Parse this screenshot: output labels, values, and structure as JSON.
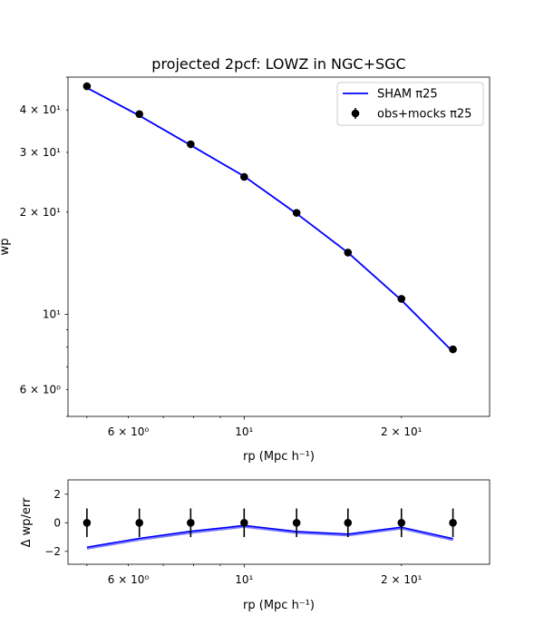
{
  "chart_data": [
    {
      "type": "line",
      "title": "projected 2pcf: LOWZ in NGC+SGC",
      "xlabel": "rp (Mpc h⁻¹)",
      "ylabel": "wp",
      "xscale": "log",
      "yscale": "log",
      "xlim": [
        4.6,
        29.5
      ],
      "ylim": [
        5.0,
        50.0
      ],
      "x_major_ticks": [
        {
          "value": 10,
          "label": "10¹"
        }
      ],
      "x_minor_ticks": [
        {
          "value": 6,
          "label": "6 × 10⁰"
        },
        {
          "value": 20,
          "label": "2 × 10¹"
        }
      ],
      "y_major_ticks": [
        {
          "value": 10,
          "label": "10¹"
        }
      ],
      "y_minor_ticks": [
        {
          "value": 6,
          "label": "6 × 10⁰"
        },
        {
          "value": 20,
          "label": "2 × 10¹"
        },
        {
          "value": 30,
          "label": "3 × 10¹"
        },
        {
          "value": 40,
          "label": "4 × 10¹"
        }
      ],
      "legend_position": "top-right",
      "grid": false,
      "series": [
        {
          "name": "SHAM π25",
          "kind": "line",
          "color": "#0000ff",
          "x": [
            5.0,
            6.3,
            7.9,
            10.0,
            12.6,
            15.8,
            20.0,
            25.1
          ],
          "y": [
            46.5,
            38.5,
            31.5,
            25.5,
            19.8,
            15.2,
            11.0,
            7.75
          ]
        },
        {
          "name": "obs+mocks π25",
          "kind": "errorbar",
          "color": "#000000",
          "x": [
            5.0,
            6.3,
            7.9,
            10.0,
            12.6,
            15.8,
            20.0,
            25.1
          ],
          "y": [
            47.0,
            38.9,
            31.7,
            25.4,
            19.9,
            15.2,
            11.1,
            7.88
          ],
          "yerr": [
            0.4,
            0.3,
            0.25,
            0.2,
            0.15,
            0.12,
            0.09,
            0.07
          ]
        }
      ]
    },
    {
      "type": "line",
      "title": "",
      "xlabel": "rp (Mpc h⁻¹)",
      "ylabel": "Δ wp/err",
      "xscale": "log",
      "yscale": "linear",
      "xlim": [
        4.6,
        29.5
      ],
      "ylim": [
        -2.9,
        3.0
      ],
      "x_major_ticks": [
        {
          "value": 10,
          "label": "10¹"
        }
      ],
      "x_minor_ticks": [
        {
          "value": 6,
          "label": "6 × 10⁰"
        },
        {
          "value": 20,
          "label": "2 × 10¹"
        }
      ],
      "y_ticks": [
        {
          "value": 2,
          "label": "2"
        },
        {
          "value": 0,
          "label": "0"
        },
        {
          "value": -2,
          "label": "−2"
        }
      ],
      "grid": false,
      "series": [
        {
          "kind": "line",
          "color": "#0000ff",
          "x": [
            5.0,
            6.3,
            7.9,
            10.0,
            12.6,
            15.8,
            20.0,
            25.1
          ],
          "y": [
            -1.72,
            -1.1,
            -0.6,
            -0.2,
            -0.62,
            -0.8,
            -0.32,
            -1.12
          ]
        },
        {
          "kind": "line",
          "color": "#7a7aff",
          "x": [
            5.0,
            6.3,
            7.9,
            10.0,
            12.6,
            15.8,
            20.0,
            25.1
          ],
          "y": [
            -1.82,
            -1.2,
            -0.72,
            -0.3,
            -0.72,
            -0.9,
            -0.42,
            -1.22
          ]
        },
        {
          "kind": "errorbar",
          "color": "#000000",
          "x": [
            5.0,
            6.3,
            7.9,
            10.0,
            12.6,
            15.8,
            20.0,
            25.1
          ],
          "y": [
            0,
            0,
            0,
            0,
            0,
            0,
            0,
            0
          ],
          "yerr": [
            1,
            1,
            1,
            1,
            1,
            1,
            1,
            1
          ]
        }
      ]
    }
  ]
}
